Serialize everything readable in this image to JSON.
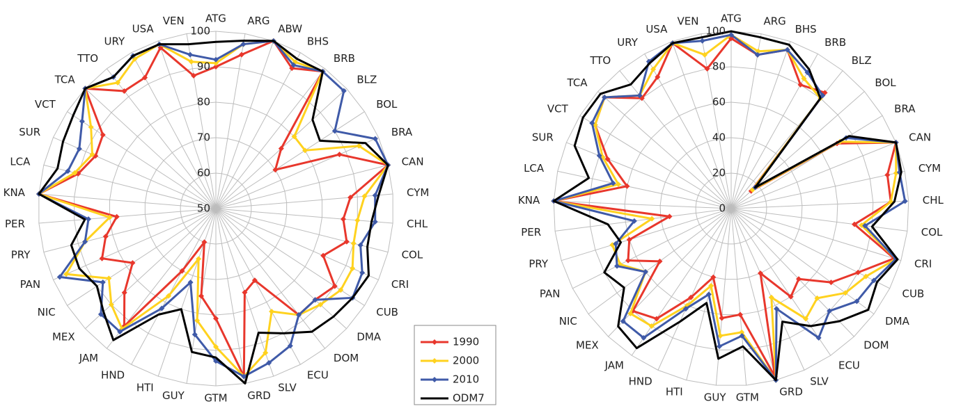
{
  "chart_data": [
    {
      "type": "radar",
      "categories": [
        "ATG",
        "ARG",
        "ABW",
        "BHS",
        "BRB",
        "BLZ",
        "BOL",
        "BRA",
        "CAN",
        "CYM",
        "CHL",
        "COL",
        "CRI",
        "CUB",
        "DMA",
        "DOM",
        "ECU",
        "SLV",
        "GRD",
        "GTM",
        "GUY",
        "HTI",
        "HND",
        "JAM",
        "MEX",
        "NIC",
        "PAN",
        "PRY",
        "PER",
        "KNA",
        "LCA",
        "SUR",
        "VCT",
        "TCA",
        "TTO",
        "URY",
        "USA",
        "VEN"
      ],
      "ylim": [
        50,
        100
      ],
      "yticks": [
        50,
        60,
        70,
        80,
        90,
        100
      ],
      "grid": true,
      "legend": "bottom-right",
      "series": [
        {
          "name": "1990",
          "color": "#e8372c",
          "markers": true,
          "values": [
            90,
            94,
            100,
            95,
            99,
            75,
            70,
            88,
            100,
            88,
            86,
            88,
            83,
            90,
            88,
            88,
            73,
            75,
            98,
            81,
            75,
            60,
            70,
            92,
            85,
            78,
            85,
            82,
            78,
            100,
            90,
            87,
            88,
            100,
            92,
            92,
            98,
            88
          ]
        },
        {
          "name": "2000",
          "color": "#ffd21f",
          "markers": true,
          "values": [
            91,
            97,
            100,
            97,
            99,
            80,
            80,
            94,
            100,
            92,
            90,
            90,
            92,
            92,
            90,
            88,
            83,
            93,
            98,
            89,
            82,
            65,
            78,
            93,
            90,
            86,
            96,
            88,
            80,
            100,
            91,
            88,
            92,
            100,
            95,
            98,
            99,
            92
          ]
        },
        {
          "name": "2010",
          "color": "#3f5aa8",
          "markers": true,
          "values": [
            92,
            97,
            100,
            96,
            99,
            99,
            90,
            99,
            100,
            95,
            95,
            92,
            95,
            96,
            88,
            88,
            94,
            96,
            98,
            93,
            86,
            72,
            82,
            94,
            94,
            88,
            98,
            88,
            86,
            100,
            93,
            92,
            95,
            100,
            97,
            99,
            99,
            94
          ]
        },
        {
          "name": "ODM7",
          "color": "#000000",
          "markers": false,
          "values": [
            97,
            98,
            100,
            98,
            99,
            87,
            85,
            96,
            100,
            96,
            94,
            94,
            97,
            96,
            95,
            94,
            90,
            87,
            100,
            92,
            91,
            80,
            84,
            97,
            93,
            90,
            92,
            92,
            87,
            100,
            96,
            97,
            98,
            100,
            97,
            99,
            99,
            97
          ]
        }
      ]
    },
    {
      "type": "radar",
      "categories": [
        "ATG",
        "ARG",
        "BHS",
        "BRB",
        "BLZ",
        "BOL",
        "BRA",
        "CAN",
        "CYM",
        "CHL",
        "COL",
        "CRI",
        "CUB",
        "DMA",
        "DOM",
        "ECU",
        "SLV",
        "GRD",
        "GTM",
        "GUY",
        "HTI",
        "HND",
        "JAM",
        "MEX",
        "NIC",
        "PAN",
        "PRY",
        "PER",
        "KNA",
        "LCA",
        "SUR",
        "VCT",
        "TCA",
        "TTO",
        "URY",
        "USA",
        "VEN"
      ],
      "ylim": [
        0,
        100
      ],
      "yticks": [
        0,
        20,
        40,
        60,
        80,
        100
      ],
      "grid": true,
      "series": [
        {
          "color": "#e8372c",
          "markers": true,
          "values": [
            96,
            88,
            95,
            80,
            84,
            15,
            70,
            100,
            90,
            90,
            70,
            96,
            80,
            70,
            55,
            60,
            40,
            98,
            60,
            62,
            40,
            55,
            75,
            80,
            50,
            65,
            60,
            35,
            100,
            60,
            75,
            90,
            95,
            80,
            85,
            99,
            80
          ]
        },
        {
          "color": "#ffd21f",
          "markers": true,
          "values": [
            98,
            90,
            95,
            84,
            80,
            16,
            72,
            100,
            95,
            90,
            74,
            97,
            85,
            80,
            70,
            75,
            55,
            100,
            70,
            72,
            45,
            60,
            80,
            82,
            60,
            70,
            70,
            45,
            100,
            65,
            78,
            90,
            95,
            82,
            90,
            99,
            88
          ]
        },
        {
          "color": "#3f5aa8",
          "markers": true,
          "values": [
            98,
            88,
            95,
            88,
            82,
            18,
            76,
            100,
            97,
            98,
            76,
            97,
            90,
            88,
            80,
            88,
            62,
            100,
            72,
            78,
            50,
            62,
            88,
            88,
            60,
            72,
            68,
            55,
            100,
            68,
            80,
            92,
            95,
            82,
            95,
            99,
            96
          ]
        },
        {
          "color": "#000000",
          "markers": false,
          "values": [
            100,
            98,
            98,
            90,
            80,
            18,
            78,
            100,
            98,
            92,
            80,
            98,
            92,
            96,
            88,
            80,
            70,
            100,
            78,
            85,
            55,
            70,
            95,
            92,
            75,
            80,
            65,
            70,
            100,
            82,
            95,
            98,
            98,
            90,
            94,
            99,
            98
          ]
        }
      ]
    }
  ]
}
